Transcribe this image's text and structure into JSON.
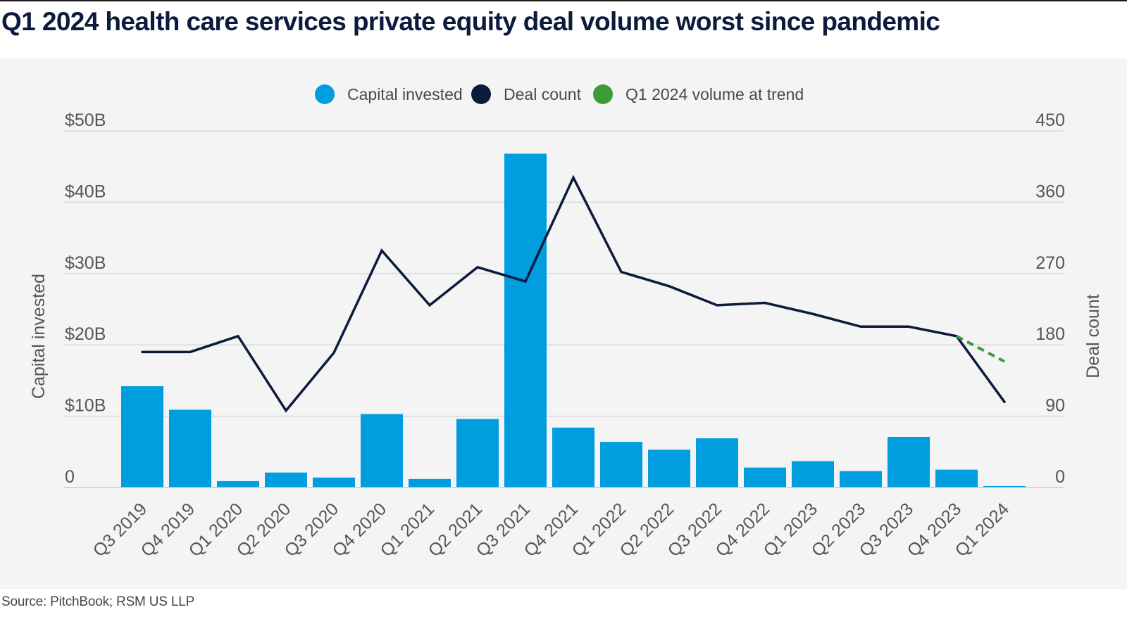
{
  "title": "Q1 2024 health care services private equity deal volume worst since pandemic",
  "source": "Source: PitchBook; RSM US LLP",
  "colors": {
    "capital": "#009ddf",
    "deals": "#0b1a3d",
    "trend": "#3d9b35",
    "grid": "#d9d9d9"
  },
  "chart_data": {
    "type": "bar",
    "title": "Q1 2024 health care services private equity deal volume worst since pandemic",
    "categories": [
      "Q3 2019",
      "Q4 2019",
      "Q1 2020",
      "Q2 2020",
      "Q3 2020",
      "Q4 2020",
      "Q1 2021",
      "Q2 2021",
      "Q3 2021",
      "Q4 2021",
      "Q1 2022",
      "Q2 2022",
      "Q3 2022",
      "Q4 2022",
      "Q1 2023",
      "Q2 2023",
      "Q3 2023",
      "Q4 2023",
      "Q1 2024"
    ],
    "series": [
      {
        "name": "Capital invested",
        "type": "bar",
        "axis": "left",
        "values": [
          14.2,
          10.9,
          0.9,
          2.1,
          1.4,
          10.3,
          1.2,
          9.6,
          46.8,
          8.4,
          6.4,
          5.3,
          6.9,
          2.8,
          3.7,
          2.3,
          7.1,
          2.5,
          0.2
        ]
      },
      {
        "name": "Deal count",
        "type": "line",
        "axis": "right",
        "values": [
          171,
          171,
          191,
          97,
          170,
          299,
          230,
          278,
          260,
          391,
          272,
          254,
          230,
          233,
          219,
          203,
          203,
          191,
          108
        ]
      },
      {
        "name": "Q1 2024 volume at trend",
        "type": "line",
        "style": "dashed",
        "axis": "right",
        "x": [
          "Q4 2023",
          "Q1 2024"
        ],
        "values": [
          191,
          159
        ]
      }
    ],
    "left_axis": {
      "label": "Capital invested",
      "range": [
        0,
        50
      ],
      "ticks": [
        0,
        10,
        20,
        30,
        40,
        50
      ],
      "tick_labels": [
        "0",
        "$10B",
        "$20B",
        "$30B",
        "$40B",
        "$50B"
      ]
    },
    "right_axis": {
      "label": "Deal count",
      "range": [
        0,
        450
      ],
      "ticks": [
        0,
        90,
        180,
        270,
        360,
        450
      ],
      "tick_labels": [
        "0",
        "90",
        "180",
        "270",
        "360",
        "450"
      ]
    },
    "legend": {
      "position": "top-center",
      "entries": [
        "Capital invested",
        "Deal count",
        "Q1 2024 volume at trend"
      ]
    },
    "grid": true
  }
}
